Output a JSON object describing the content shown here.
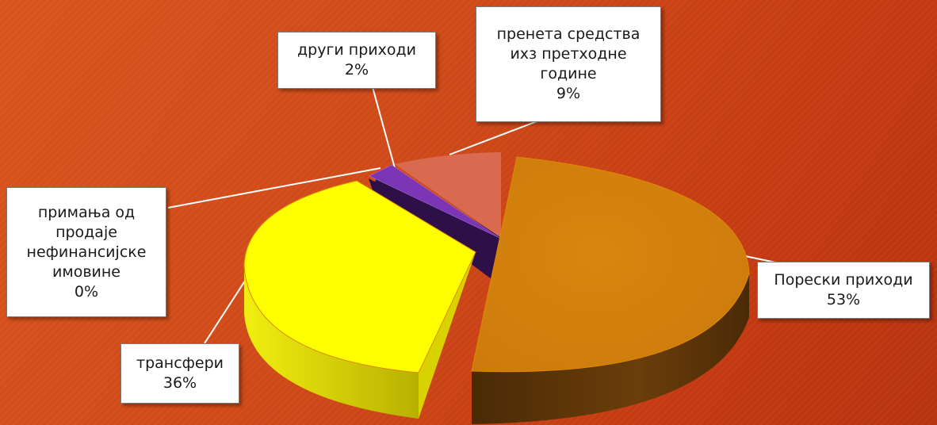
{
  "chart_data": {
    "type": "pie",
    "style": "3d-exploded",
    "slices": [
      {
        "label": "Порески приходи",
        "percent_label": "53%",
        "value": 53,
        "color": "#d4820f",
        "side_color": "#6e3f0a"
      },
      {
        "label": "трансфери",
        "percent_label": "36%",
        "value": 36,
        "color": "#ffff00",
        "side_color": "#c9c400"
      },
      {
        "label": "примања од продаје нефинансијске имовине",
        "percent_label": "0%",
        "value": 0,
        "color": "#5b2d8c",
        "side_color": "#2a1042"
      },
      {
        "label": "други приходи",
        "percent_label": "2%",
        "value": 2,
        "color": "#7b35b5",
        "side_color": "#331250"
      },
      {
        "label": "пренета средства ихз претходне године",
        "percent_label": "9%",
        "value": 9,
        "color": "#d96a50",
        "side_color": "#7a3522"
      }
    ]
  },
  "labels": {
    "poreski": {
      "lines": [
        "Порески приходи"
      ],
      "pct": "53%"
    },
    "transferi": {
      "lines": [
        "трансфери"
      ],
      "pct": "36%"
    },
    "primanja": {
      "lines": [
        "примања од",
        "продаје",
        "нефинансијске",
        "имовине"
      ],
      "pct": "0%"
    },
    "drugi": {
      "lines": [
        "други приходи"
      ],
      "pct": "2%"
    },
    "preneta": {
      "lines": [
        "пренета средства",
        "ихз претходне",
        "године"
      ],
      "pct": "9%"
    }
  }
}
